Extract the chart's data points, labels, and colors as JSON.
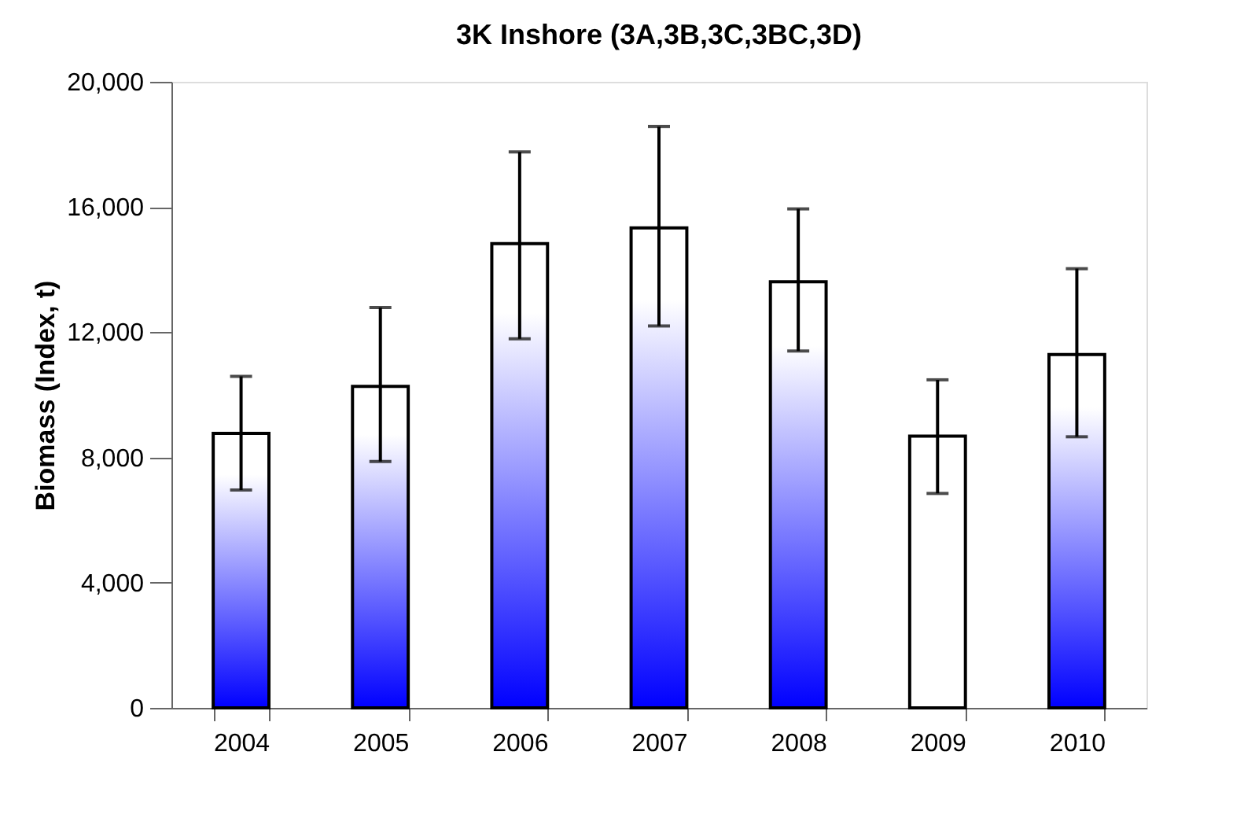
{
  "chart_data": {
    "type": "bar",
    "title": "3K Inshore (3A,3B,3C,3BC,3D)",
    "ylabel": "Biomass (Index, t)",
    "categories": [
      "2004",
      "2005",
      "2006",
      "2007",
      "2008",
      "2009",
      "2010"
    ],
    "values": [
      8770,
      10270,
      14830,
      15330,
      13610,
      8680,
      11290
    ],
    "errors": [
      [
        6960,
        10590
      ],
      [
        7870,
        12790
      ],
      [
        11790,
        17760
      ],
      [
        12200,
        18570
      ],
      [
        11400,
        15940
      ],
      [
        6850,
        10480
      ],
      [
        8660,
        14030
      ]
    ],
    "colors": [
      "#0000ff",
      "#0000ff",
      "#0000ff",
      "#0000ff",
      "#0000ff",
      "#ffffff",
      "#0000ff"
    ],
    "ylim": [
      0,
      20000
    ],
    "yticks": [
      {
        "value": 0,
        "label": "0"
      },
      {
        "value": 4000,
        "label": "4,000"
      },
      {
        "value": 8000,
        "label": "8,000"
      },
      {
        "value": 12000,
        "label": "12,000"
      },
      {
        "value": 16000,
        "label": "16,000"
      },
      {
        "value": 20000,
        "label": "20,000"
      }
    ],
    "grid": false
  }
}
